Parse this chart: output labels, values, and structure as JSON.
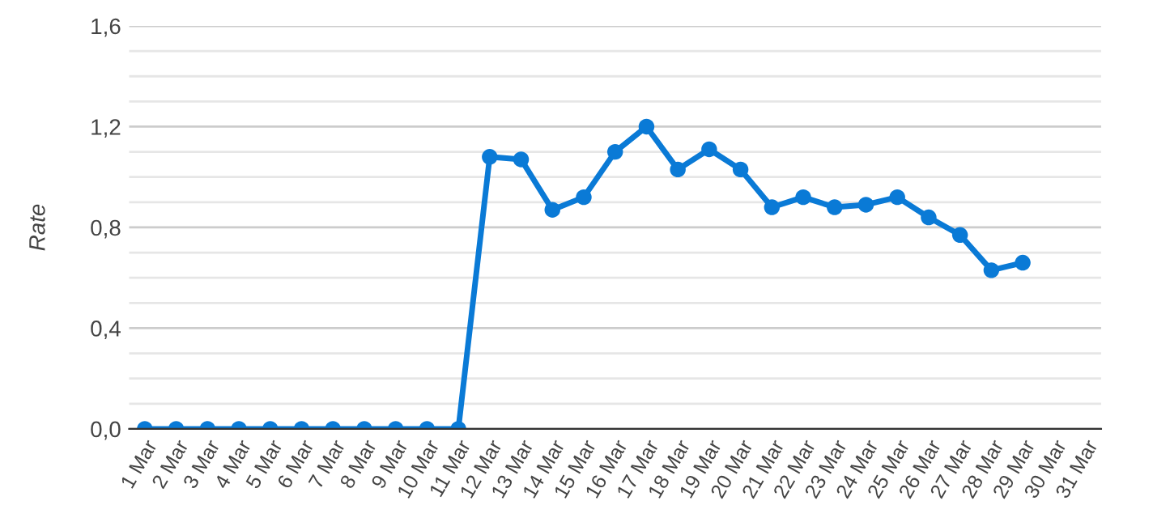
{
  "chart_data": {
    "type": "line",
    "ylabel": "Rate",
    "categories": [
      "1 Mar",
      "2 Mar",
      "3 Mar",
      "4 Mar",
      "5 Mar",
      "6 Mar",
      "7 Mar",
      "8 Mar",
      "9 Mar",
      "10 Mar",
      "11 Mar",
      "12 Mar",
      "13 Mar",
      "14 Mar",
      "15 Mar",
      "16 Mar",
      "17 Mar",
      "18 Mar",
      "19 Mar",
      "20 Mar",
      "21 Mar",
      "22 Mar",
      "23 Mar",
      "24 Mar",
      "25 Mar",
      "26 Mar",
      "27 Mar",
      "28 Mar",
      "29 Mar",
      "30 Mar",
      "31 Mar"
    ],
    "series": [
      {
        "color": "#0a7ad6",
        "values": [
          0,
          0,
          0,
          0,
          0,
          0,
          0,
          0,
          0,
          0,
          0,
          1.08,
          1.07,
          0.87,
          0.92,
          1.1,
          1.2,
          1.03,
          1.11,
          1.03,
          0.88,
          0.92,
          0.88,
          0.89,
          0.92,
          0.84,
          0.77,
          0.63,
          0.66,
          null,
          null
        ]
      }
    ],
    "ylim": [
      0,
      1.6
    ],
    "yticks": [
      {
        "value": 0,
        "label": "0,0"
      },
      {
        "value": 0.1,
        "label": null
      },
      {
        "value": 0.2,
        "label": null
      },
      {
        "value": 0.3,
        "label": null
      },
      {
        "value": 0.4,
        "label": "0,4"
      },
      {
        "value": 0.5,
        "label": null
      },
      {
        "value": 0.6,
        "label": null
      },
      {
        "value": 0.7,
        "label": null
      },
      {
        "value": 0.8,
        "label": "0,8"
      },
      {
        "value": 0.9,
        "label": null
      },
      {
        "value": 1.0,
        "label": null
      },
      {
        "value": 1.1,
        "label": null
      },
      {
        "value": 1.2,
        "label": "1,2"
      },
      {
        "value": 1.3,
        "label": null
      },
      {
        "value": 1.4,
        "label": null
      },
      {
        "value": 1.5,
        "label": null
      },
      {
        "value": 1.6,
        "label": "1,6"
      }
    ],
    "grid": "y",
    "marker": "circle",
    "line_style": "solid",
    "legend": false
  }
}
